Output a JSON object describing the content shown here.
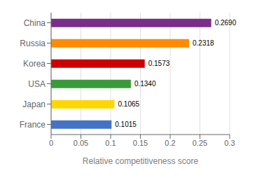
{
  "chart_data": {
    "type": "bar",
    "orientation": "horizontal",
    "categories": [
      "France",
      "Japan",
      "USA",
      "Korea",
      "Russia",
      "China"
    ],
    "values": [
      0.1015,
      0.1065,
      0.134,
      0.1573,
      0.2318,
      0.269
    ],
    "value_labels": [
      "0.1015",
      "0.1065",
      "0.1340",
      "0.1573",
      "0.2318",
      "0.2690"
    ],
    "data_labels": true,
    "colors": [
      "#4472C4",
      "#FFD700",
      "#3A9B3A",
      "#CC0000",
      "#FF8C00",
      "#7B2D8B"
    ],
    "xlabel": "Relative competitiveness score",
    "xlim": [
      0,
      0.3
    ],
    "xticks": [
      0,
      0.05,
      0.1,
      0.15,
      0.2,
      0.25,
      0.3
    ],
    "grid": true
  }
}
